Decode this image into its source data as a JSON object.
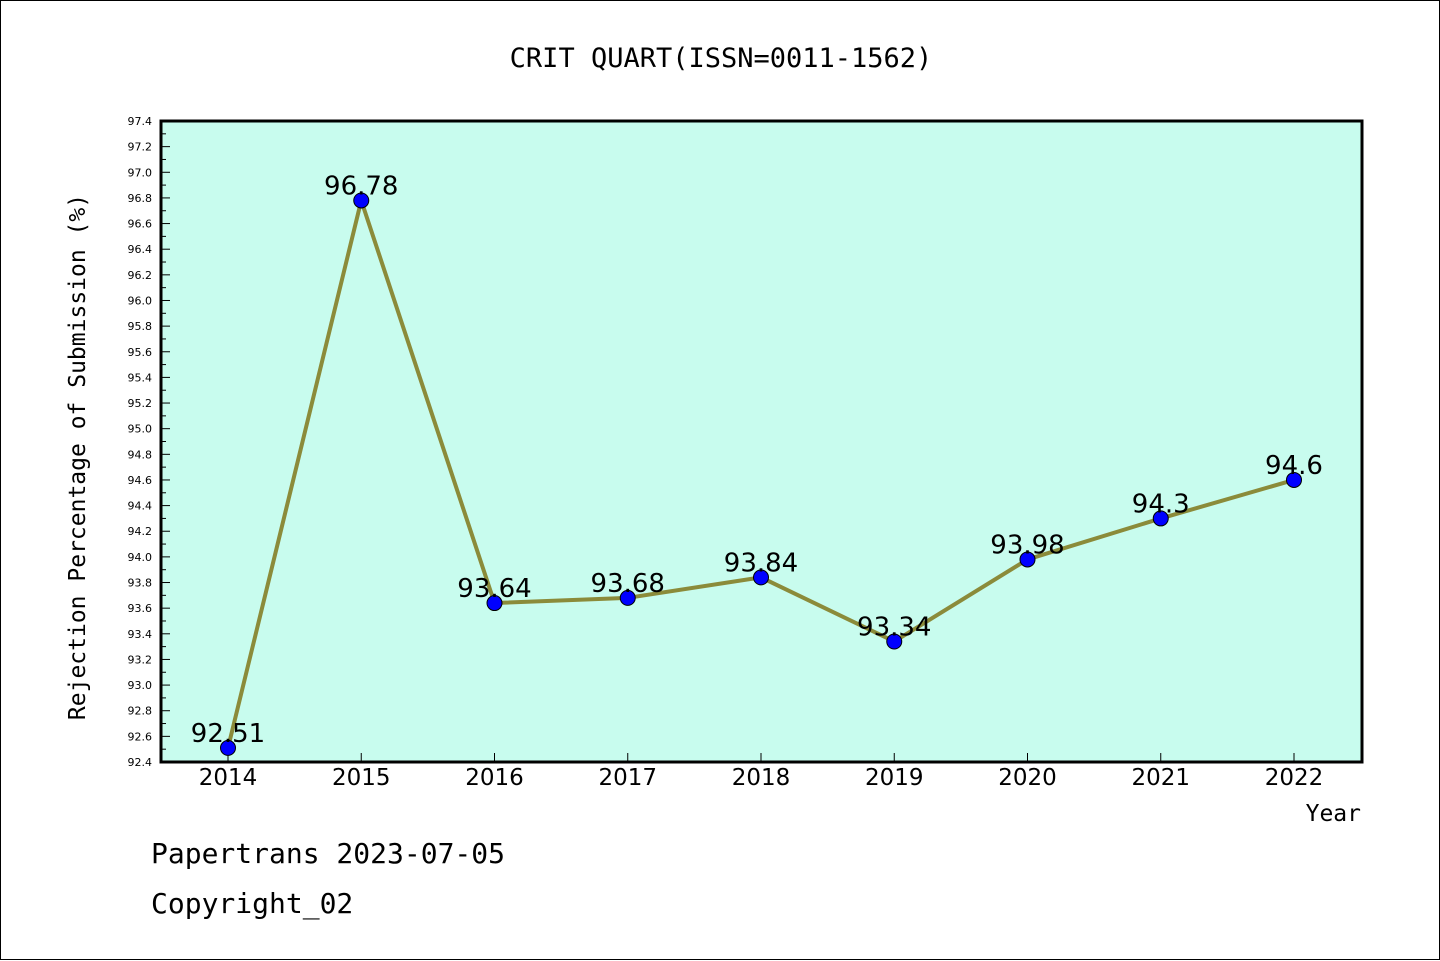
{
  "chart_data": {
    "type": "line",
    "title": "CRIT QUART(ISSN=0011-1562)",
    "xlabel": "Year",
    "ylabel": "Rejection Percentage of Submission (%)",
    "categories": [
      "2014",
      "2015",
      "2016",
      "2017",
      "2018",
      "2019",
      "2020",
      "2021",
      "2022"
    ],
    "values": [
      92.51,
      96.78,
      93.64,
      93.68,
      93.84,
      93.34,
      93.98,
      94.3,
      94.6
    ],
    "data_labels": [
      "92.51",
      "96.78",
      "93.64",
      "93.68",
      "93.84",
      "93.34",
      "93.98",
      "94.3",
      "94.6"
    ],
    "ylim": [
      92.4,
      97.4
    ],
    "yticks": [
      "92.4",
      "92.6",
      "92.8",
      "93.0",
      "93.2",
      "93.4",
      "93.6",
      "93.8",
      "94.0",
      "94.2",
      "94.4",
      "94.6",
      "94.8",
      "95.0",
      "95.2",
      "95.4",
      "95.6",
      "95.8",
      "96.0",
      "96.2",
      "96.4",
      "96.6",
      "96.8",
      "97.0",
      "97.2",
      "97.4"
    ],
    "grid": false,
    "colors": {
      "plot_background": "#c8fcee",
      "line": "#8b8b3a",
      "marker": "#0000ff"
    }
  },
  "footer": {
    "line1": "Papertrans 2023-07-05",
    "line2": "Copyright_02"
  }
}
